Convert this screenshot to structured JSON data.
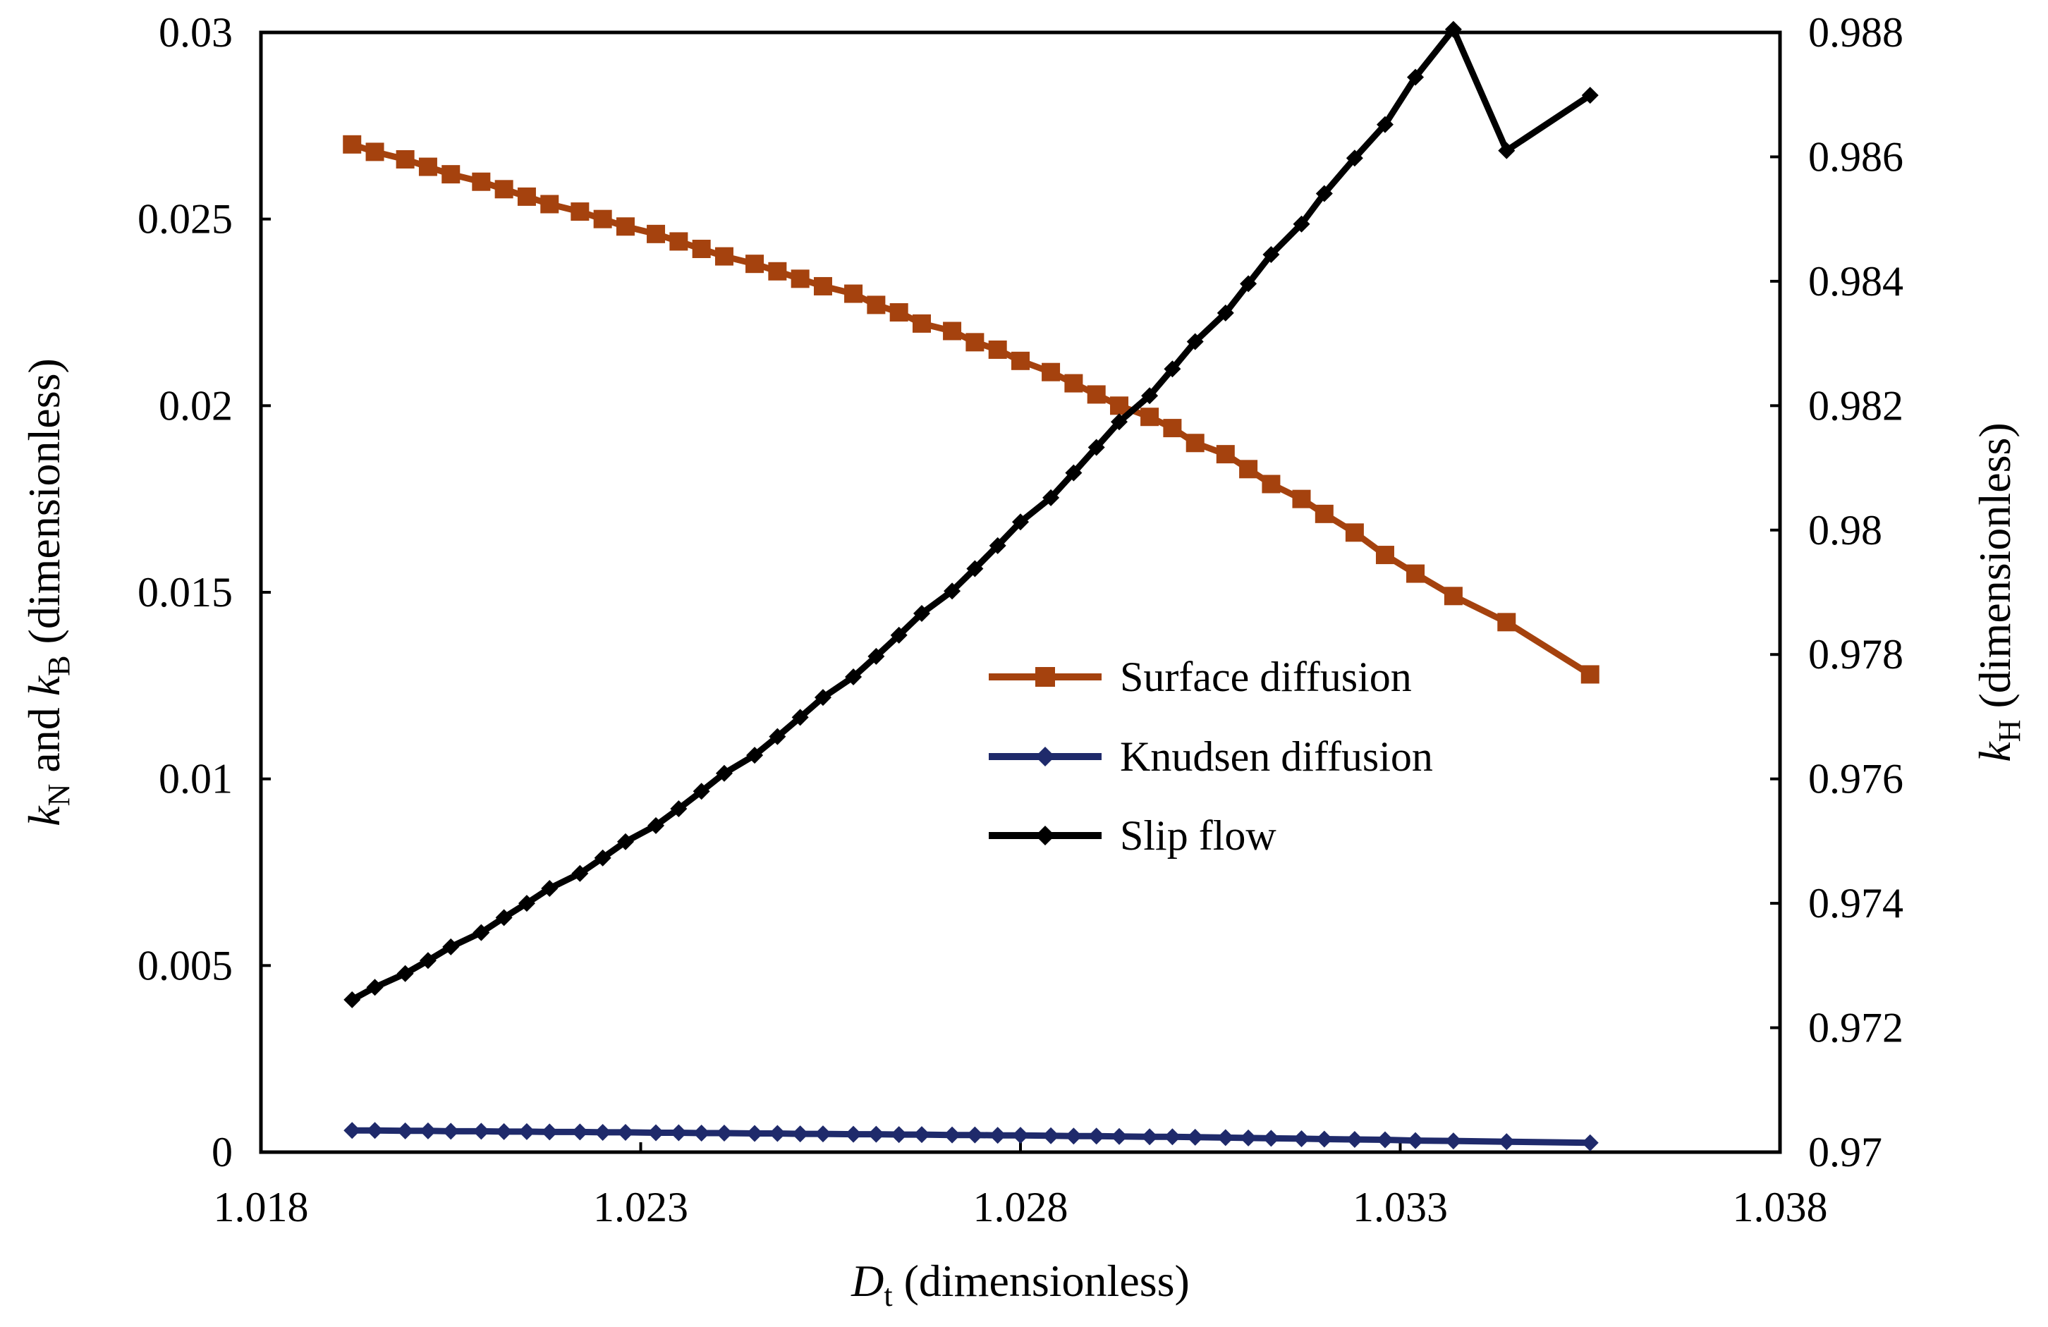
{
  "chart_data": {
    "type": "line",
    "title": "",
    "xlabel": {
      "var": "D",
      "sub": "t",
      "rest": " (dimensionless)"
    },
    "ylabel_left": {
      "var1": "k",
      "sub1": "N",
      "mid": " and ",
      "var2": "k",
      "sub2": "B",
      "rest": " (dimensionless)"
    },
    "ylabel_right": {
      "var": "k",
      "sub": "H",
      "rest": " (dimensionless)"
    },
    "xlim": [
      1.018,
      1.038
    ],
    "ylim_left": [
      0,
      0.03
    ],
    "ylim_right": [
      0.97,
      0.988
    ],
    "x_ticks": [
      "1.018",
      "1.023",
      "1.028",
      "1.033",
      "1.038"
    ],
    "y_left_ticks": [
      "0",
      "0.005",
      "0.01",
      "0.015",
      "0.02",
      "0.025",
      "0.03"
    ],
    "y_right_ticks": [
      "0.97",
      "0.972",
      "0.974",
      "0.976",
      "0.978",
      "0.98",
      "0.982",
      "0.984",
      "0.986",
      "0.988"
    ],
    "legend_position": "center-right",
    "series": [
      {
        "name": "Surface diffusion",
        "axis": "left",
        "color": "#A5420E",
        "marker": "square",
        "x": [
          1.0192,
          1.0195,
          1.0199,
          1.0202,
          1.0205,
          1.0209,
          1.0212,
          1.0215,
          1.0218,
          1.0222,
          1.0225,
          1.0228,
          1.0232,
          1.0235,
          1.0238,
          1.0241,
          1.0245,
          1.0248,
          1.0251,
          1.0254,
          1.0258,
          1.0261,
          1.0264,
          1.0267,
          1.0271,
          1.0274,
          1.0277,
          1.028,
          1.0284,
          1.0287,
          1.029,
          1.0293,
          1.0297,
          1.03,
          1.0303,
          1.0307,
          1.031,
          1.0313,
          1.0317,
          1.032,
          1.0324,
          1.0328,
          1.0332,
          1.0337,
          1.0344,
          1.0355
        ],
        "values": [
          0.027,
          0.0268,
          0.0266,
          0.0264,
          0.0262,
          0.026,
          0.0258,
          0.0256,
          0.0254,
          0.0252,
          0.025,
          0.0248,
          0.0246,
          0.0244,
          0.0242,
          0.024,
          0.0238,
          0.0236,
          0.0234,
          0.0232,
          0.023,
          0.0227,
          0.0225,
          0.0222,
          0.022,
          0.0217,
          0.0215,
          0.0212,
          0.0209,
          0.0206,
          0.0203,
          0.02,
          0.0197,
          0.0194,
          0.019,
          0.0187,
          0.0183,
          0.0179,
          0.0175,
          0.0171,
          0.0166,
          0.016,
          0.0155,
          0.0149,
          0.0142,
          0.0128
        ]
      },
      {
        "name": "Knudsen diffusion",
        "axis": "left",
        "color": "#1F2A6B",
        "marker": "diamond",
        "x": [
          1.0192,
          1.0195,
          1.0199,
          1.0202,
          1.0205,
          1.0209,
          1.0212,
          1.0215,
          1.0218,
          1.0222,
          1.0225,
          1.0228,
          1.0232,
          1.0235,
          1.0238,
          1.0241,
          1.0245,
          1.0248,
          1.0251,
          1.0254,
          1.0258,
          1.0261,
          1.0264,
          1.0267,
          1.0271,
          1.0274,
          1.0277,
          1.028,
          1.0284,
          1.0287,
          1.029,
          1.0293,
          1.0297,
          1.03,
          1.0303,
          1.0307,
          1.031,
          1.0313,
          1.0317,
          1.032,
          1.0324,
          1.0328,
          1.0332,
          1.0337,
          1.0344,
          1.0355
        ],
        "values": [
          0.00058,
          0.00058,
          0.00057,
          0.00057,
          0.00056,
          0.00056,
          0.00055,
          0.00055,
          0.00054,
          0.00054,
          0.00053,
          0.00053,
          0.00052,
          0.00052,
          0.00051,
          0.00051,
          0.0005,
          0.0005,
          0.00049,
          0.00049,
          0.00048,
          0.00048,
          0.00047,
          0.00047,
          0.00046,
          0.00046,
          0.00045,
          0.00045,
          0.00044,
          0.00043,
          0.00043,
          0.00042,
          0.00041,
          0.00041,
          0.0004,
          0.00039,
          0.00038,
          0.00037,
          0.00036,
          0.00035,
          0.00034,
          0.00033,
          0.00031,
          0.0003,
          0.00028,
          0.00025
        ]
      },
      {
        "name": "Slip flow",
        "axis": "right",
        "color": "#000000",
        "marker": "diamond",
        "x": [
          1.0192,
          1.0195,
          1.0199,
          1.0202,
          1.0205,
          1.0209,
          1.0212,
          1.0215,
          1.0218,
          1.0222,
          1.0225,
          1.0228,
          1.0232,
          1.0235,
          1.0238,
          1.0241,
          1.0245,
          1.0248,
          1.0251,
          1.0254,
          1.0258,
          1.0261,
          1.0264,
          1.0267,
          1.0271,
          1.0274,
          1.0277,
          1.028,
          1.0284,
          1.0287,
          1.029,
          1.0293,
          1.0297,
          1.03,
          1.0303,
          1.0307,
          1.031,
          1.0313,
          1.0317,
          1.032,
          1.0324,
          1.0328,
          1.0332,
          1.0337,
          1.0344,
          1.0355
        ],
        "values": [
          0.97245,
          0.97265,
          0.97287,
          0.97308,
          0.9733,
          0.97353,
          0.97377,
          0.974,
          0.97424,
          0.97448,
          0.97473,
          0.97499,
          0.97525,
          0.97552,
          0.9758,
          0.97609,
          0.97638,
          0.97668,
          0.97699,
          0.97731,
          0.97764,
          0.97797,
          0.97831,
          0.97866,
          0.97902,
          0.97938,
          0.97975,
          0.98013,
          0.98052,
          0.98092,
          0.98133,
          0.98174,
          0.98216,
          0.98259,
          0.98303,
          0.98349,
          0.98396,
          0.98443,
          0.98492,
          0.98541,
          0.98598,
          0.98652,
          0.98728,
          0.98805,
          0.9861,
          0.98699
        ]
      }
    ]
  }
}
